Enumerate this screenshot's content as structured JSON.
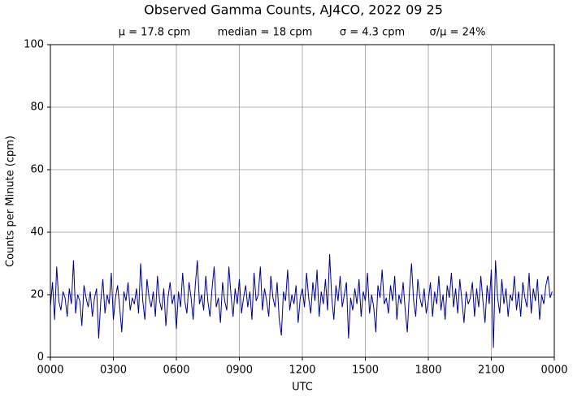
{
  "chart_data": {
    "type": "line",
    "title": "Observed Gamma Counts, AJ4CO, 2022 09 25",
    "stats": [
      "μ = 17.8 cpm",
      "median = 18 cpm",
      "σ = 4.3 cpm",
      "σ/μ = 24%"
    ],
    "xlabel": "UTC",
    "ylabel": "Counts per Minute (cpm)",
    "color": "#00008b",
    "grid": true,
    "xlim": [
      0,
      24
    ],
    "ylim": [
      0,
      100
    ],
    "yticks": [
      0,
      20,
      40,
      60,
      80,
      100
    ],
    "xticks": [
      {
        "value": 0,
        "label": "0000"
      },
      {
        "value": 3,
        "label": "0300"
      },
      {
        "value": 6,
        "label": "0600"
      },
      {
        "value": 9,
        "label": "0900"
      },
      {
        "value": 12,
        "label": "1200"
      },
      {
        "value": 15,
        "label": "1500"
      },
      {
        "value": 18,
        "label": "1800"
      },
      {
        "value": 21,
        "label": "2100"
      },
      {
        "value": 24,
        "label": "0000"
      }
    ],
    "x": [
      0,
      0.1,
      0.2,
      0.3,
      0.4,
      0.5,
      0.6,
      0.7,
      0.8,
      0.9,
      1,
      1.1,
      1.2,
      1.3,
      1.4,
      1.5,
      1.6,
      1.7,
      1.8,
      1.9,
      2,
      2.1,
      2.2,
      2.3,
      2.4,
      2.5,
      2.6,
      2.7,
      2.8,
      2.9,
      3,
      3.1,
      3.2,
      3.3,
      3.4,
      3.5,
      3.6,
      3.7,
      3.8,
      3.9,
      4,
      4.1,
      4.2,
      4.3,
      4.4,
      4.5,
      4.6,
      4.7,
      4.8,
      4.9,
      5,
      5.1,
      5.2,
      5.3,
      5.4,
      5.5,
      5.6,
      5.7,
      5.8,
      5.9,
      6,
      6.1,
      6.2,
      6.3,
      6.4,
      6.5,
      6.6,
      6.7,
      6.8,
      6.9,
      7,
      7.1,
      7.2,
      7.3,
      7.4,
      7.5,
      7.6,
      7.7,
      7.8,
      7.9,
      8,
      8.1,
      8.2,
      8.3,
      8.4,
      8.5,
      8.6,
      8.7,
      8.8,
      8.9,
      9,
      9.1,
      9.2,
      9.3,
      9.4,
      9.5,
      9.6,
      9.7,
      9.8,
      9.9,
      10,
      10.1,
      10.2,
      10.3,
      10.4,
      10.5,
      10.6,
      10.7,
      10.8,
      10.9,
      11,
      11.1,
      11.2,
      11.3,
      11.4,
      11.5,
      11.6,
      11.7,
      11.8,
      11.9,
      12,
      12.1,
      12.2,
      12.3,
      12.4,
      12.5,
      12.6,
      12.7,
      12.8,
      12.9,
      13,
      13.1,
      13.2,
      13.3,
      13.4,
      13.5,
      13.6,
      13.7,
      13.8,
      13.9,
      14,
      14.1,
      14.2,
      14.3,
      14.4,
      14.5,
      14.6,
      14.7,
      14.8,
      14.9,
      15,
      15.1,
      15.2,
      15.3,
      15.4,
      15.5,
      15.6,
      15.7,
      15.8,
      15.9,
      16,
      16.1,
      16.2,
      16.3,
      16.4,
      16.5,
      16.6,
      16.7,
      16.8,
      16.9,
      17,
      17.1,
      17.2,
      17.3,
      17.4,
      17.5,
      17.6,
      17.7,
      17.8,
      17.9,
      18,
      18.1,
      18.2,
      18.3,
      18.4,
      18.5,
      18.6,
      18.7,
      18.8,
      18.9,
      19,
      19.1,
      19.2,
      19.3,
      19.4,
      19.5,
      19.6,
      19.7,
      19.8,
      19.9,
      20,
      20.1,
      20.2,
      20.3,
      20.4,
      20.5,
      20.6,
      20.7,
      20.8,
      20.9,
      21,
      21.1,
      21.2,
      21.3,
      21.4,
      21.5,
      21.6,
      21.7,
      21.8,
      21.9,
      22,
      22.1,
      22.2,
      22.3,
      22.4,
      22.5,
      22.6,
      22.7,
      22.8,
      22.9,
      23,
      23.1,
      23.2,
      23.3,
      23.4,
      23.5,
      23.6,
      23.7,
      23.8,
      23.9
    ],
    "values": [
      16,
      24,
      12,
      29,
      18,
      15,
      21,
      19,
      13,
      22,
      17,
      31,
      14,
      20,
      18,
      10,
      23,
      19,
      16,
      21,
      13,
      19,
      22,
      6,
      18,
      25,
      14,
      20,
      17,
      27,
      12,
      19,
      23,
      16,
      8,
      21,
      18,
      24,
      15,
      19,
      17,
      22,
      14,
      30,
      18,
      12,
      25,
      19,
      16,
      21,
      13,
      26,
      18,
      15,
      22,
      10,
      19,
      24,
      17,
      20,
      9,
      21,
      16,
      27,
      18,
      14,
      24,
      19,
      12,
      23,
      31,
      17,
      20,
      15,
      26,
      18,
      13,
      22,
      29,
      16,
      19,
      11,
      24,
      18,
      15,
      29,
      20,
      13,
      22,
      17,
      25,
      14,
      19,
      23,
      16,
      21,
      12,
      27,
      18,
      20,
      29,
      15,
      22,
      18,
      13,
      26,
      19,
      16,
      24,
      12,
      7,
      21,
      18,
      28,
      15,
      20,
      17,
      23,
      11,
      19,
      22,
      16,
      27,
      19,
      14,
      24,
      18,
      28,
      13,
      21,
      17,
      25,
      15,
      33,
      19,
      12,
      23,
      18,
      26,
      16,
      20,
      24,
      6,
      19,
      15,
      22,
      17,
      25,
      13,
      21,
      18,
      27,
      14,
      20,
      16,
      8,
      23,
      19,
      28,
      17,
      19,
      14,
      23,
      18,
      26,
      12,
      20,
      17,
      24,
      15,
      8,
      21,
      30,
      18,
      13,
      25,
      19,
      16,
      22,
      14,
      18,
      24,
      13,
      21,
      17,
      26,
      15,
      20,
      12,
      23,
      19,
      27,
      16,
      22,
      14,
      25,
      18,
      11,
      21,
      17,
      19,
      24,
      13,
      22,
      16,
      26,
      18,
      11,
      23,
      17,
      28,
      3,
      31,
      19,
      14,
      25,
      17,
      22,
      13,
      20,
      18,
      26,
      15,
      21,
      13,
      24,
      19,
      16,
      27,
      14,
      22,
      18,
      25,
      12,
      20,
      17,
      23,
      26,
      19,
      21
    ]
  }
}
